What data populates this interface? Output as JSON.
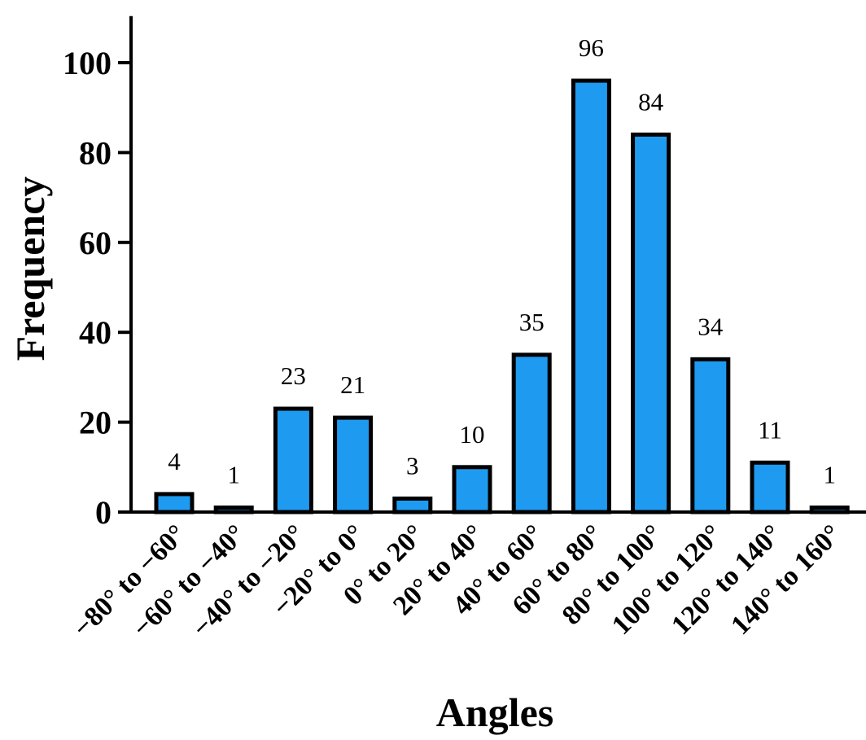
{
  "chart_data": {
    "type": "bar",
    "xlabel": "Angles",
    "ylabel": "Frequency",
    "ylim": [
      0,
      110
    ],
    "yticks": [
      0,
      20,
      40,
      60,
      80,
      100
    ],
    "categories": [
      "−80° to −60°",
      "−60° to −40°",
      "−40° to −20°",
      "−20° to 0°",
      "0° to 20°",
      "20° to 40°",
      "40° to 60°",
      "60° to 80°",
      "80° to 100°",
      "100° to 120°",
      "120° to 140°",
      "140° to 160°"
    ],
    "values": [
      4,
      1,
      23,
      21,
      3,
      10,
      35,
      96,
      84,
      34,
      11,
      1
    ],
    "data_labels": [
      "4",
      "1",
      "23",
      "21",
      "3",
      "10",
      "35",
      "96",
      "84",
      "34",
      "11",
      "1"
    ],
    "bar_color": "#1E9BF0",
    "bar_edge_color": "#000000",
    "grid": false,
    "legend": "none"
  }
}
